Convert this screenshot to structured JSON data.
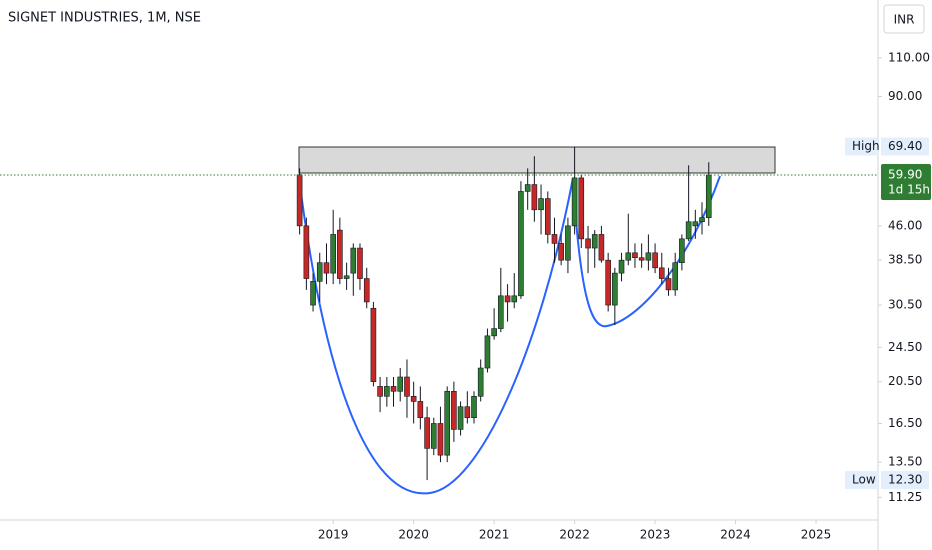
{
  "chart_data": {
    "type": "candlestick",
    "title": "SIGNET INDUSTRIES, 1M, NSE",
    "currency": "INR",
    "log_scale": true,
    "up_color": "#2e7d32",
    "down_color": "#c62828",
    "x": [
      2018.583,
      2018.667,
      2018.75,
      2018.833,
      2018.917,
      2019.0,
      2019.083,
      2019.167,
      2019.25,
      2019.333,
      2019.417,
      2019.5,
      2019.583,
      2019.667,
      2019.75,
      2019.833,
      2019.917,
      2020.0,
      2020.083,
      2020.167,
      2020.25,
      2020.333,
      2020.417,
      2020.5,
      2020.583,
      2020.667,
      2020.75,
      2020.833,
      2020.917,
      2021.0,
      2021.083,
      2021.167,
      2021.25,
      2021.333,
      2021.417,
      2021.5,
      2021.583,
      2021.667,
      2021.75,
      2021.833,
      2021.917,
      2022.0,
      2022.083,
      2022.167,
      2022.25,
      2022.333,
      2022.417,
      2022.5,
      2022.583,
      2022.667,
      2022.75,
      2022.833,
      2022.917,
      2023.0,
      2023.083,
      2023.167,
      2023.25,
      2023.333,
      2023.417,
      2023.5,
      2023.583,
      2023.667
    ],
    "open": [
      60,
      46,
      30.5,
      34.5,
      38,
      36,
      45,
      35,
      36,
      41,
      35,
      30,
      20,
      19,
      20,
      19.5,
      21,
      19,
      18.5,
      17,
      14.5,
      16.5,
      14,
      19.5,
      16,
      18,
      17,
      19,
      22,
      26,
      27,
      32,
      31,
      32,
      55,
      57,
      50,
      53,
      44,
      42,
      38.5,
      46,
      59,
      43,
      41,
      44,
      38.5,
      30.5,
      36,
      38.5,
      40,
      39,
      38.5,
      40,
      37,
      35,
      33,
      38,
      43,
      46,
      47,
      48
    ],
    "high": [
      62,
      48,
      36,
      40,
      42,
      50,
      48,
      38,
      42,
      42,
      37,
      31,
      21,
      21,
      21,
      22,
      23,
      20.5,
      20,
      18,
      17,
      18,
      20,
      20.5,
      18.5,
      19.5,
      19.5,
      23,
      27,
      30,
      37,
      34,
      36,
      58,
      62,
      66,
      57,
      55,
      48,
      44,
      48,
      69.4,
      60,
      46,
      45,
      46,
      40,
      37,
      40,
      49,
      42,
      42,
      44,
      42,
      40,
      37,
      40,
      44,
      63,
      50,
      52,
      64
    ],
    "low": [
      44,
      33,
      29.5,
      31,
      34,
      34,
      34,
      33,
      32,
      33,
      30,
      20,
      17.5,
      18,
      18,
      18.5,
      17,
      16.5,
      16,
      12.3,
      14,
      13.5,
      13.5,
      15,
      15.5,
      16.5,
      16.5,
      18.5,
      21.5,
      25.5,
      26.5,
      28,
      30,
      31.5,
      50,
      47,
      44,
      42,
      38,
      37.5,
      36,
      44,
      41,
      36,
      37,
      38,
      29.5,
      27.5,
      34.5,
      37.5,
      37,
      37,
      36.5,
      36,
      34,
      32,
      32,
      36.5,
      42.5,
      43,
      44,
      46
    ],
    "close": [
      46,
      35,
      34.5,
      38,
      36,
      44,
      35,
      35.5,
      41,
      35,
      31,
      20.5,
      19,
      20,
      19.5,
      21,
      19,
      18.5,
      17,
      14.5,
      16.5,
      14,
      19.5,
      16,
      18,
      17,
      19,
      22,
      26,
      27,
      32,
      31,
      32,
      55,
      57,
      50,
      53,
      44,
      42,
      38.5,
      46,
      59,
      43,
      41,
      44,
      38.5,
      30.5,
      36,
      38.5,
      40,
      39,
      38.5,
      40,
      37,
      35,
      33,
      38,
      43,
      47,
      47,
      48,
      59.9
    ],
    "xlim": [
      2014.86,
      2025.77
    ],
    "xticks": [
      2019,
      2020,
      2021,
      2022,
      2023,
      2024,
      2025
    ],
    "ylim": [
      10,
      148.5
    ],
    "yticks": [
      {
        "value": 110,
        "label": "110.00"
      },
      {
        "value": 90,
        "label": "90.00"
      },
      {
        "value": 46,
        "label": "46.00"
      },
      {
        "value": 38.5,
        "label": "38.50"
      },
      {
        "value": 30.5,
        "label": "30.50"
      },
      {
        "value": 24.5,
        "label": "24.50"
      },
      {
        "value": 20.5,
        "label": "20.50"
      },
      {
        "value": 16.5,
        "label": "16.50"
      },
      {
        "value": 13.5,
        "label": "13.50"
      },
      {
        "value": 11.25,
        "label": "11.25"
      }
    ],
    "high_marker": {
      "name": "High",
      "value": 69.4,
      "label": "69.40"
    },
    "low_marker": {
      "name": "Low",
      "value": 12.3,
      "label": "12.30"
    },
    "last_price": {
      "value": 59.9,
      "label": "59.90",
      "countdown": "1d 15h"
    }
  }
}
